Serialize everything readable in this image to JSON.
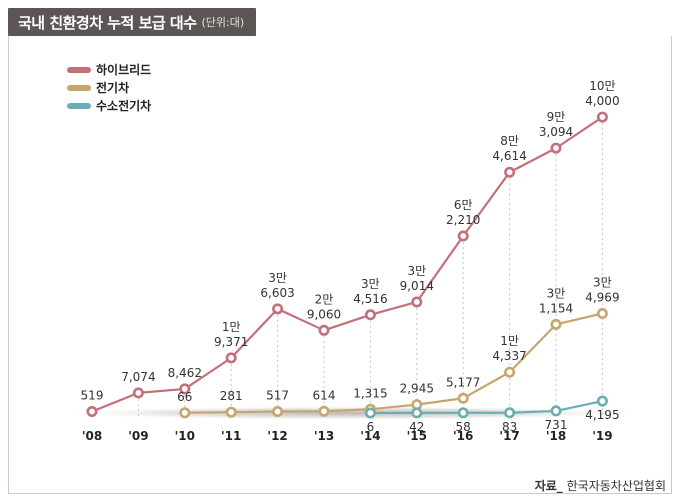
{
  "header": {
    "title": "국내 친환경차 누적 보급 대수",
    "unit": "(단위:대)"
  },
  "source": {
    "label": "자료_",
    "text": "한국자동차산업협회"
  },
  "chart_data": {
    "type": "line",
    "title": "국내 친환경차 누적 보급 대수",
    "unit": "(단위:대)",
    "categories": [
      "'08",
      "'09",
      "'10",
      "'11",
      "'12",
      "'13",
      "'14",
      "'15",
      "'16",
      "'17",
      "'18",
      "'19"
    ],
    "ylim": [
      0,
      110000
    ],
    "grid": false,
    "legend_position": "top-left",
    "series": [
      {
        "name": "하이브리드",
        "color": "#c4707a",
        "values": [
          519,
          7074,
          8462,
          19371,
          36603,
          29060,
          34516,
          39014,
          62210,
          84614,
          93094,
          104000
        ],
        "labels": [
          [
            "519"
          ],
          [
            "7,074"
          ],
          [
            "8,462"
          ],
          [
            "1만",
            "9,371"
          ],
          [
            "3만",
            "6,603"
          ],
          [
            "2만",
            "9,060"
          ],
          [
            "3만",
            "4,516"
          ],
          [
            "3만",
            "9,014"
          ],
          [
            "6만",
            "2,210"
          ],
          [
            "8만",
            "4,614"
          ],
          [
            "9만",
            "3,094"
          ],
          [
            "10만",
            "4,000"
          ]
        ]
      },
      {
        "name": "전기차",
        "color": "#c6a66e",
        "values": [
          null,
          null,
          66,
          281,
          517,
          614,
          1315,
          2945,
          5177,
          14337,
          31154,
          34969
        ],
        "labels": [
          null,
          null,
          [
            "66"
          ],
          [
            "281"
          ],
          [
            "517"
          ],
          [
            "614"
          ],
          [
            "1,315"
          ],
          [
            "2,945"
          ],
          [
            "5,177"
          ],
          [
            "1만",
            "4,337"
          ],
          [
            "3만",
            "1,154"
          ],
          [
            "3만",
            "4,969"
          ]
        ]
      },
      {
        "name": "수소전기차",
        "color": "#6aaeb5",
        "values": [
          null,
          null,
          null,
          null,
          null,
          null,
          6,
          42,
          58,
          83,
          731,
          4195
        ],
        "labels": [
          null,
          null,
          null,
          null,
          null,
          null,
          [
            "6"
          ],
          [
            "42"
          ],
          [
            "58"
          ],
          [
            "83"
          ],
          [
            "731"
          ],
          [
            "4,195"
          ]
        ]
      }
    ]
  }
}
